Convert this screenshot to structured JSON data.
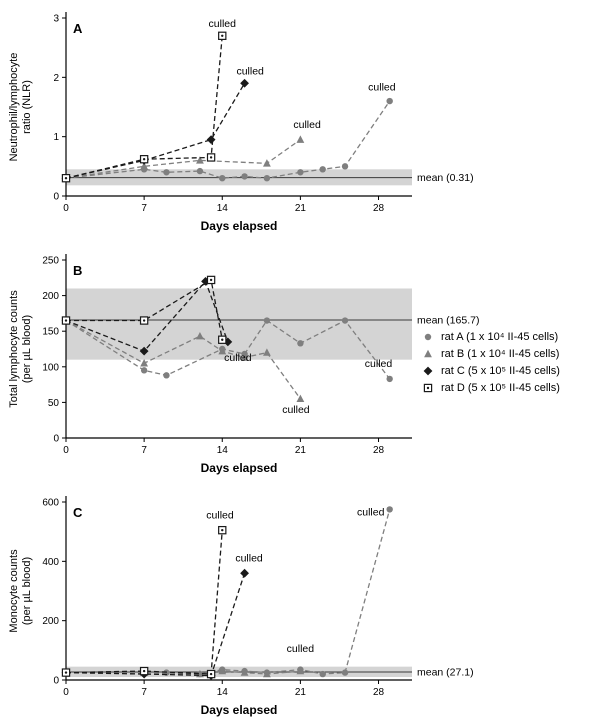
{
  "figure": {
    "legend": {
      "position": "right-of-panel-B",
      "items": [
        {
          "label": "rat A (1 x 10⁴ II-45 cells)",
          "marker": "circle",
          "color": "#7f7f7f"
        },
        {
          "label": "rat B (1 x 10⁴ II-45 cells)",
          "marker": "triangle",
          "color": "#7f7f7f"
        },
        {
          "label": "rat C (5 x 10⁵ II-45 cells)",
          "marker": "diamond",
          "color": "#1a1a1a"
        },
        {
          "label": "rat D (5 x 10⁵ II-45 cells)",
          "marker": "square-dot",
          "color": "#1a1a1a"
        }
      ]
    }
  },
  "chart_data": [
    {
      "type": "line",
      "panel": "A",
      "ylabel_lines": [
        "Neutrophil/lymphocyte",
        "ratio (NLR)"
      ],
      "xlabel": "Days elapsed",
      "xlim": [
        0,
        31
      ],
      "ylim": [
        0,
        3
      ],
      "xticks": [
        0,
        7,
        14,
        21,
        28
      ],
      "yticks": [
        0,
        1,
        2,
        3
      ],
      "grid": false,
      "mean": 0.31,
      "mean_label": "mean (0.31)",
      "mean_band": [
        0.18,
        0.45
      ],
      "series": [
        {
          "name": "rat A",
          "marker": "circle",
          "color": "#7f7f7f",
          "dashed": true,
          "x": [
            0,
            7,
            9,
            12,
            14,
            16,
            18,
            21,
            23,
            25,
            29
          ],
          "y": [
            0.3,
            0.45,
            0.4,
            0.42,
            0.3,
            0.33,
            0.3,
            0.4,
            0.45,
            0.5,
            1.6
          ]
        },
        {
          "name": "rat B",
          "marker": "triangle",
          "color": "#7f7f7f",
          "dashed": true,
          "x": [
            0,
            7,
            12,
            18,
            21
          ],
          "y": [
            0.3,
            0.5,
            0.6,
            0.55,
            0.95
          ]
        },
        {
          "name": "rat C",
          "marker": "diamond",
          "color": "#1a1a1a",
          "dashed": true,
          "x": [
            0,
            7,
            13,
            16
          ],
          "y": [
            0.3,
            0.6,
            0.95,
            1.9
          ]
        },
        {
          "name": "rat D",
          "marker": "square-dot",
          "color": "#1a1a1a",
          "dashed": true,
          "x": [
            0,
            7,
            13,
            14
          ],
          "y": [
            0.3,
            0.62,
            0.65,
            2.7
          ]
        }
      ],
      "annotations": [
        {
          "text": "culled",
          "x": 14.0,
          "y": 2.85
        },
        {
          "text": "culled",
          "x": 16.5,
          "y": 2.05
        },
        {
          "text": "culled",
          "x": 21.6,
          "y": 1.15
        },
        {
          "text": "culled",
          "x": 28.3,
          "y": 1.78
        }
      ]
    },
    {
      "type": "line",
      "panel": "B",
      "ylabel_lines": [
        "Total lymphocyte counts",
        "(per µL blood)"
      ],
      "xlabel": "Days elapsed",
      "xlim": [
        0,
        31
      ],
      "ylim": [
        0,
        250
      ],
      "xticks": [
        0,
        7,
        14,
        21,
        28
      ],
      "yticks": [
        0,
        50,
        100,
        150,
        200,
        250
      ],
      "grid": false,
      "mean": 165.7,
      "mean_label": "mean (165.7)",
      "mean_band": [
        110,
        210
      ],
      "series": [
        {
          "name": "rat A",
          "marker": "circle",
          "color": "#7f7f7f",
          "dashed": true,
          "x": [
            0,
            7,
            9,
            14,
            16,
            18,
            21,
            25,
            29
          ],
          "y": [
            165,
            95,
            88,
            125,
            118,
            165,
            133,
            165,
            83
          ]
        },
        {
          "name": "rat B",
          "marker": "triangle",
          "color": "#7f7f7f",
          "dashed": true,
          "x": [
            0,
            7,
            12,
            14,
            16,
            18,
            21
          ],
          "y": [
            165,
            105,
            143,
            122,
            113,
            120,
            55
          ]
        },
        {
          "name": "rat C",
          "marker": "diamond",
          "color": "#1a1a1a",
          "dashed": true,
          "x": [
            0,
            7,
            12.5,
            14.5
          ],
          "y": [
            165,
            122,
            220,
            135
          ]
        },
        {
          "name": "rat D",
          "marker": "square-dot",
          "color": "#1a1a1a",
          "dashed": true,
          "x": [
            0,
            7,
            13,
            14
          ],
          "y": [
            165,
            165,
            222,
            138
          ]
        }
      ],
      "annotations": [
        {
          "text": "culled",
          "x": 15.4,
          "y": 108
        },
        {
          "text": "culled",
          "x": 20.6,
          "y": 35
        },
        {
          "text": "culled",
          "x": 28.0,
          "y": 100
        }
      ]
    },
    {
      "type": "line",
      "panel": "C",
      "ylabel_lines": [
        "Monocyte counts",
        "(per µL blood)"
      ],
      "xlabel": "Days elapsed",
      "xlim": [
        0,
        31
      ],
      "ylim": [
        0,
        600
      ],
      "xticks": [
        0,
        7,
        14,
        21,
        28
      ],
      "yticks": [
        0,
        200,
        400,
        600
      ],
      "grid": false,
      "mean": 27.1,
      "mean_label": "mean (27.1)",
      "mean_band": [
        10,
        45
      ],
      "series": [
        {
          "name": "rat A",
          "marker": "circle",
          "color": "#7f7f7f",
          "dashed": true,
          "x": [
            0,
            7,
            9,
            12,
            14,
            16,
            18,
            21,
            23,
            25,
            29
          ],
          "y": [
            25,
            30,
            25,
            20,
            35,
            30,
            25,
            35,
            20,
            25,
            575
          ]
        },
        {
          "name": "rat B",
          "marker": "triangle",
          "color": "#7f7f7f",
          "dashed": true,
          "x": [
            0,
            7,
            12,
            14,
            16,
            18,
            21
          ],
          "y": [
            25,
            25,
            20,
            30,
            25,
            20,
            30
          ]
        },
        {
          "name": "rat C",
          "marker": "diamond",
          "color": "#1a1a1a",
          "dashed": true,
          "x": [
            0,
            7,
            13,
            16
          ],
          "y": [
            25,
            20,
            15,
            360
          ]
        },
        {
          "name": "rat D",
          "marker": "square-dot",
          "color": "#1a1a1a",
          "dashed": true,
          "x": [
            0,
            7,
            13,
            14
          ],
          "y": [
            25,
            30,
            20,
            505
          ]
        }
      ],
      "annotations": [
        {
          "text": "culled",
          "x": 13.8,
          "y": 545
        },
        {
          "text": "culled",
          "x": 16.4,
          "y": 400
        },
        {
          "text": "culled",
          "x": 21.0,
          "y": 95
        },
        {
          "text": "culled",
          "x": 27.3,
          "y": 555
        }
      ]
    }
  ]
}
